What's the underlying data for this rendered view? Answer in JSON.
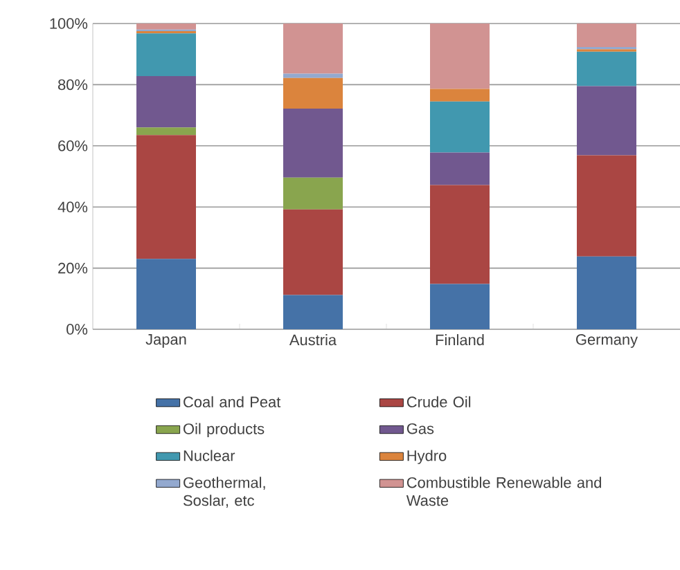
{
  "chart_data": {
    "type": "bar",
    "stacked": true,
    "categories": [
      "Japan",
      "Austria",
      "Finland",
      "Germany"
    ],
    "series": [
      {
        "name": "Coal and Peat",
        "color": "#4572a7",
        "values": [
          23,
          11.2,
          14.8,
          23.8
        ]
      },
      {
        "name": "Crude Oil",
        "color": "#aa4643",
        "values": [
          40.5,
          28,
          32.4,
          33.1
        ]
      },
      {
        "name": "Oil products",
        "color": "#89a54e",
        "values": [
          2.5,
          10.4,
          0,
          0
        ]
      },
      {
        "name": "Gas",
        "color": "#71588f",
        "values": [
          16.8,
          22.6,
          10.6,
          22.6
        ]
      },
      {
        "name": "Nuclear",
        "color": "#4198af",
        "values": [
          14,
          0,
          16.7,
          11.3
        ]
      },
      {
        "name": "Hydro",
        "color": "#db843d",
        "values": [
          0.7,
          10,
          4.1,
          0.8
        ]
      },
      {
        "name": "Geothermal, Soslar, etc",
        "color": "#93a9cf",
        "values": [
          0.5,
          1.4,
          0,
          0.7
        ]
      },
      {
        "name": "Combustible Renewable and Waste",
        "color": "#d19392",
        "values": [
          2,
          16.4,
          21.4,
          7.7
        ]
      }
    ],
    "ylim": [
      0,
      100
    ],
    "yticks": [
      {
        "value": 0,
        "label": "0%"
      },
      {
        "value": 20,
        "label": "20%"
      },
      {
        "value": 40,
        "label": "40%"
      },
      {
        "value": 60,
        "label": "60%"
      },
      {
        "value": 80,
        "label": "80%"
      },
      {
        "value": 100,
        "label": "100%"
      }
    ],
    "grid": "y",
    "legend": "bottom"
  }
}
